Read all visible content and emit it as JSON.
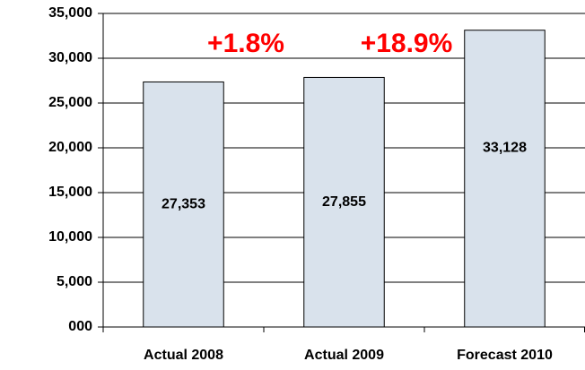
{
  "chart_data": {
    "type": "bar",
    "categories": [
      "Actual 2008",
      "Actual 2009",
      "Forecast 2010"
    ],
    "values": [
      27353,
      27855,
      33128
    ],
    "value_labels": [
      "27,353",
      "27,855",
      "33,128"
    ],
    "color": "#d9e2ec",
    "ylim": [
      0,
      35000
    ],
    "yticks": [
      {
        "value": 0,
        "label": "000"
      },
      {
        "value": 5000,
        "label": "5,000"
      },
      {
        "value": 10000,
        "label": "10,000"
      },
      {
        "value": 15000,
        "label": "15,000"
      },
      {
        "value": 20000,
        "label": "20,000"
      },
      {
        "value": 25000,
        "label": "25,000"
      },
      {
        "value": 30000,
        "label": "30,000"
      },
      {
        "value": 35000,
        "label": "35,000"
      }
    ],
    "grid": true,
    "annotations": [
      "+1.8%",
      "+18.9%"
    ],
    "annotation_color": "#ff0000"
  }
}
